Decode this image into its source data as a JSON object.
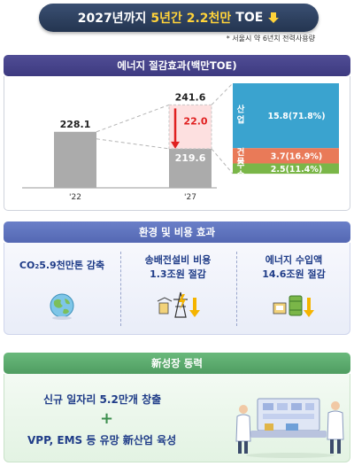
{
  "banner": {
    "prefix": "2027년까지",
    "highlight": "5년간 2.2천만",
    "suffix": "TOE",
    "note": "* 서울시 약 6년치 전력사용량"
  },
  "chart_section": {
    "title": "에너지 절감효과(백만TOE)"
  },
  "chart_data": {
    "type": "bar",
    "title": "에너지 절감효과(백만TOE)",
    "categories": [
      "'22",
      "'27"
    ],
    "values": [
      228.1,
      219.6
    ],
    "value_labels": [
      "228.1",
      "219.6"
    ],
    "target_label": "241.6",
    "savings_label": "22.0",
    "target_value": 241.6,
    "savings_value": 22.0,
    "breakdown": [
      {
        "name": "산업",
        "value": "15.8(71.8%)",
        "color": "#3aa3cf"
      },
      {
        "name": "건물",
        "value": "3.7(16.9%)",
        "color": "#e97a58"
      },
      {
        "name": "수송",
        "value": "2.5(11.4%)",
        "color": "#7ab648"
      }
    ],
    "bar_color": "#ababab",
    "savings_color": "#e02020"
  },
  "env_section": {
    "title": "환경 및 비용 효과",
    "items": [
      {
        "line1_main": "CO",
        "line1_sub": "2",
        "line1_rest": "5.9천만톤 감축"
      },
      {
        "line1": "송배전설비 비용",
        "line2": "1.3조원 절감"
      },
      {
        "line1": "에너지 수입액",
        "line2": "14.6조원 절감"
      }
    ],
    "icons": [
      "globe-icon",
      "power-tower-icon",
      "oil-barrel-icon"
    ]
  },
  "growth_section": {
    "title": "新성장 동력",
    "line1": "신규 일자리 5.2만개 창출",
    "plus": "+",
    "line2": "VPP, EMS 등 유망 新산업 육성"
  }
}
